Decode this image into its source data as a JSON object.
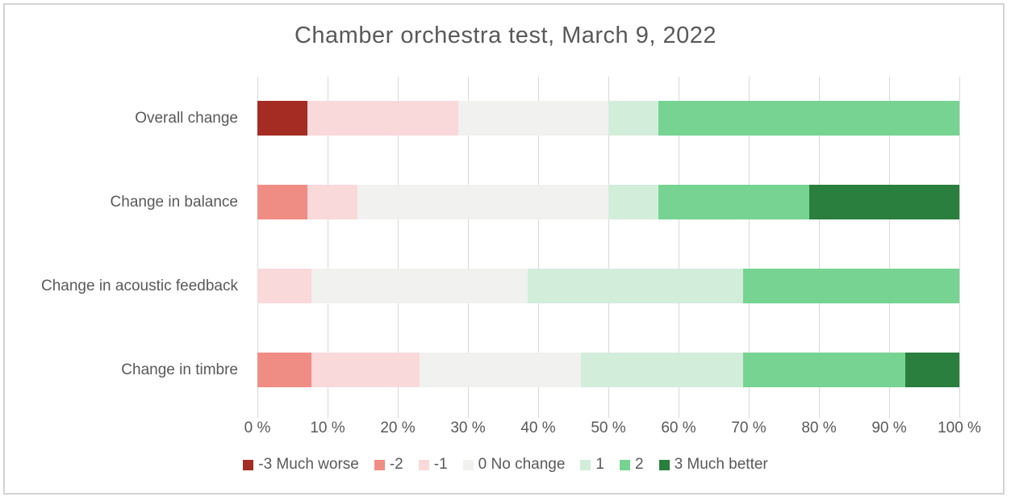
{
  "title": "Chamber orchestra test, March 9, 2022",
  "chart_data": {
    "type": "bar",
    "orientation": "horizontal",
    "stacked": true,
    "units": "percent",
    "title": "Chamber orchestra test, March 9, 2022",
    "categories": [
      "Overall change",
      "Change in balance",
      "Change in acoustic feedback",
      "Change in timbre"
    ],
    "series": [
      {
        "name": "-3 Much worse",
        "color": "#a42c23",
        "values": [
          7.14,
          0,
          0,
          0
        ]
      },
      {
        "name": "-2",
        "color": "#ef8d85",
        "values": [
          0,
          7.14,
          0,
          7.69
        ]
      },
      {
        "name": "-1",
        "color": "#f9d9da",
        "values": [
          21.43,
          7.14,
          7.69,
          15.38
        ]
      },
      {
        "name": "0 No change",
        "color": "#f1f1ef",
        "values": [
          21.43,
          35.72,
          30.77,
          23.08
        ]
      },
      {
        "name": "1",
        "color": "#d2edda",
        "values": [
          7.14,
          7.14,
          30.77,
          23.08
        ]
      },
      {
        "name": "2",
        "color": "#76d391",
        "values": [
          42.86,
          21.43,
          30.77,
          23.08
        ]
      },
      {
        "name": "3 Much better",
        "color": "#2a7e3e",
        "values": [
          0,
          21.43,
          0,
          7.69
        ]
      }
    ],
    "x_axis": {
      "min": 0,
      "max": 100,
      "tick_step": 10,
      "tick_labels": [
        "0 %",
        "10 %",
        "20 %",
        "30 %",
        "40 %",
        "50 %",
        "60 %",
        "70 %",
        "80 %",
        "90 %",
        "100 %"
      ],
      "grid": true
    },
    "legend": {
      "position": "bottom",
      "entries": [
        "-3 Much worse",
        "-2",
        "-1",
        "0 No change",
        "1",
        "2",
        "3 Much better"
      ]
    }
  },
  "styles": {
    "text_color": "#595959",
    "gridline_color": "#d9d9d9",
    "frame_border_color": "#d3d3d3",
    "background_color": "#ffffff"
  }
}
